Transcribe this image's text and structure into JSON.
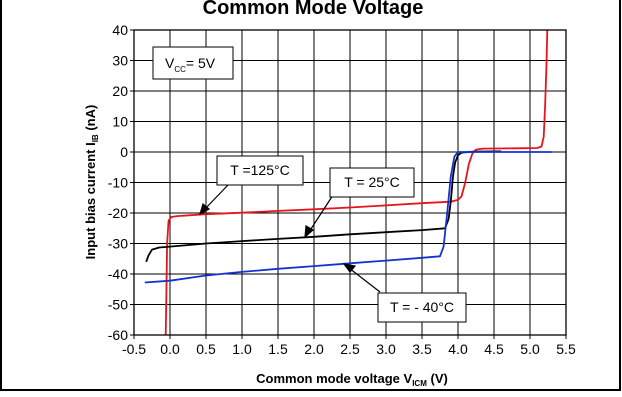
{
  "chart_data": {
    "type": "line",
    "title": "Common Mode Voltage",
    "xlabel_main": "Common mode voltage V",
    "xlabel_sub": "ICM",
    "xlabel_unit": " (V)",
    "ylabel_main": "Input bias current I",
    "ylabel_sub": "IB",
    "ylabel_unit": " (nA)",
    "xlim": [
      -0.5,
      5.5
    ],
    "ylim": [
      -60,
      40
    ],
    "grid": true,
    "xticks": [
      -0.5,
      0.0,
      0.5,
      1.0,
      1.5,
      2.0,
      2.5,
      3.0,
      3.5,
      4.0,
      4.5,
      5.0,
      5.5
    ],
    "yticks": [
      -60,
      -50,
      -40,
      -30,
      -20,
      -10,
      0,
      10,
      20,
      30,
      40
    ],
    "condition_box": {
      "main": "V",
      "sub": "CC",
      "rest": "= 5V"
    },
    "annotations": [
      {
        "text": "T =125°C",
        "series": "red"
      },
      {
        "text": "T = 25°C",
        "series": "black"
      },
      {
        "text": "T = - 40°C",
        "series": "blue"
      }
    ],
    "series": [
      {
        "color": "#e8141b",
        "points": [
          [
            -0.06,
            -60
          ],
          [
            -0.05,
            -46
          ],
          [
            -0.04,
            -30
          ],
          [
            -0.02,
            -22.5
          ],
          [
            0.02,
            -21.3
          ],
          [
            0.1,
            -21.0
          ],
          [
            0.5,
            -20.4
          ],
          [
            1.0,
            -19.9
          ],
          [
            1.5,
            -19.3
          ],
          [
            2.0,
            -18.8
          ],
          [
            2.5,
            -18.2
          ],
          [
            3.0,
            -17.5
          ],
          [
            3.5,
            -16.8
          ],
          [
            3.9,
            -16.3
          ],
          [
            4.0,
            -15.7
          ],
          [
            4.05,
            -14.5
          ],
          [
            4.1,
            -10.0
          ],
          [
            4.15,
            -4.0
          ],
          [
            4.2,
            -0.5
          ],
          [
            4.25,
            0.8
          ],
          [
            4.35,
            1.1
          ],
          [
            4.8,
            1.2
          ],
          [
            5.1,
            1.3
          ],
          [
            5.16,
            1.8
          ],
          [
            5.19,
            5.0
          ],
          [
            5.21,
            15.0
          ],
          [
            5.23,
            30.0
          ],
          [
            5.24,
            40.0
          ]
        ]
      },
      {
        "color": "#000000",
        "points": [
          [
            -0.33,
            -36.0
          ],
          [
            -0.3,
            -34.0
          ],
          [
            -0.25,
            -32.0
          ],
          [
            -0.15,
            -31.3
          ],
          [
            0.0,
            -31.0
          ],
          [
            0.5,
            -30.0
          ],
          [
            1.0,
            -29.2
          ],
          [
            1.5,
            -28.5
          ],
          [
            2.0,
            -27.8
          ],
          [
            2.5,
            -27.0
          ],
          [
            3.0,
            -26.3
          ],
          [
            3.5,
            -25.6
          ],
          [
            3.82,
            -25.0
          ],
          [
            3.87,
            -22.0
          ],
          [
            3.9,
            -16.0
          ],
          [
            3.93,
            -8.0
          ],
          [
            3.96,
            -3.5
          ],
          [
            4.0,
            -1.0
          ],
          [
            4.05,
            -0.2
          ],
          [
            4.2,
            0.1
          ],
          [
            4.6,
            0.2
          ]
        ]
      },
      {
        "color": "#1432d2",
        "points": [
          [
            -0.35,
            -42.8
          ],
          [
            0.0,
            -42.2
          ],
          [
            0.5,
            -40.5
          ],
          [
            1.0,
            -39.3
          ],
          [
            1.5,
            -38.3
          ],
          [
            2.0,
            -37.4
          ],
          [
            2.5,
            -36.5
          ],
          [
            3.0,
            -35.6
          ],
          [
            3.5,
            -34.7
          ],
          [
            3.75,
            -34.2
          ],
          [
            3.8,
            -31.0
          ],
          [
            3.85,
            -20.0
          ],
          [
            3.9,
            -8.0
          ],
          [
            3.95,
            -1.5
          ],
          [
            4.0,
            0.0
          ],
          [
            4.5,
            0.0
          ],
          [
            5.0,
            0.0
          ],
          [
            5.3,
            0.0
          ]
        ]
      }
    ]
  }
}
